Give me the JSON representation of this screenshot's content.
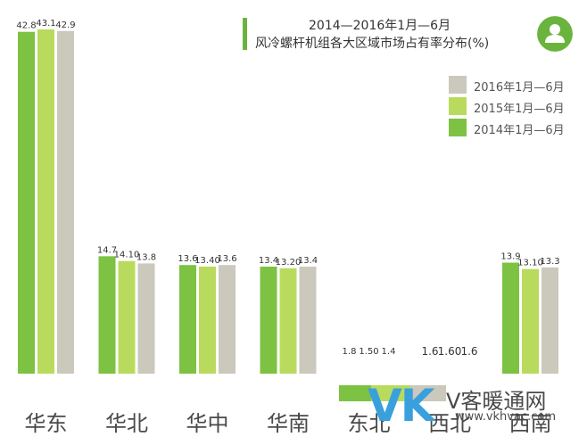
{
  "header": {
    "title_line1": "2014—2016年1月—6月",
    "title_line2": "风冷螺杆机组各大区域市场占有率分布(%)"
  },
  "icons": {
    "badge": "user-icon"
  },
  "colors": {
    "s2014": "#7dc243",
    "s2015": "#b9db5d",
    "s2016": "#cbc8bc",
    "title_bar": "#6ab43e",
    "badge": "#6ab43e",
    "watermark_accent": "#3aa0dd"
  },
  "watermark": {
    "brand": "VK",
    "site_cn": "V客暖通网",
    "site_url": "www.vkhvac.com"
  },
  "chart_data": {
    "type": "bar",
    "title": "2014—2016年1月—6月 风冷螺杆机组各大区域市场占有率分布(%)",
    "categories": [
      "华东",
      "华北",
      "华中",
      "华南",
      "东北",
      "西北",
      "西南"
    ],
    "series": [
      {
        "name": "2014年1月—6月",
        "values": [
          42.8,
          14.7,
          13.6,
          13.4,
          1.8,
          1.6,
          13.9
        ],
        "labels": [
          "42.8",
          "14.7",
          "13.6",
          "13.4",
          "1.8",
          "1.6",
          "13.9"
        ]
      },
      {
        "name": "2015年1月—6月",
        "values": [
          43.1,
          14.1,
          13.4,
          13.2,
          1.5,
          1.6,
          13.1
        ],
        "labels": [
          "43.1",
          "14.10",
          "13.40",
          "13.20",
          "1.50",
          "1.60",
          "13.10"
        ]
      },
      {
        "name": "2016年1月—6月",
        "values": [
          42.9,
          13.8,
          13.6,
          13.4,
          1.4,
          1.6,
          13.3
        ],
        "labels": [
          "42.9",
          "13.8",
          "13.6",
          "13.4",
          "1.4",
          "1.6",
          "13.3"
        ]
      }
    ],
    "legend": [
      "2016年1月—6月",
      "2015年1月—6月",
      "2014年1月—6月"
    ],
    "legend_position": "right",
    "grid": false,
    "ylim": [
      0,
      43.1
    ],
    "hidden_bar_categories": [
      "东北",
      "西北"
    ]
  }
}
